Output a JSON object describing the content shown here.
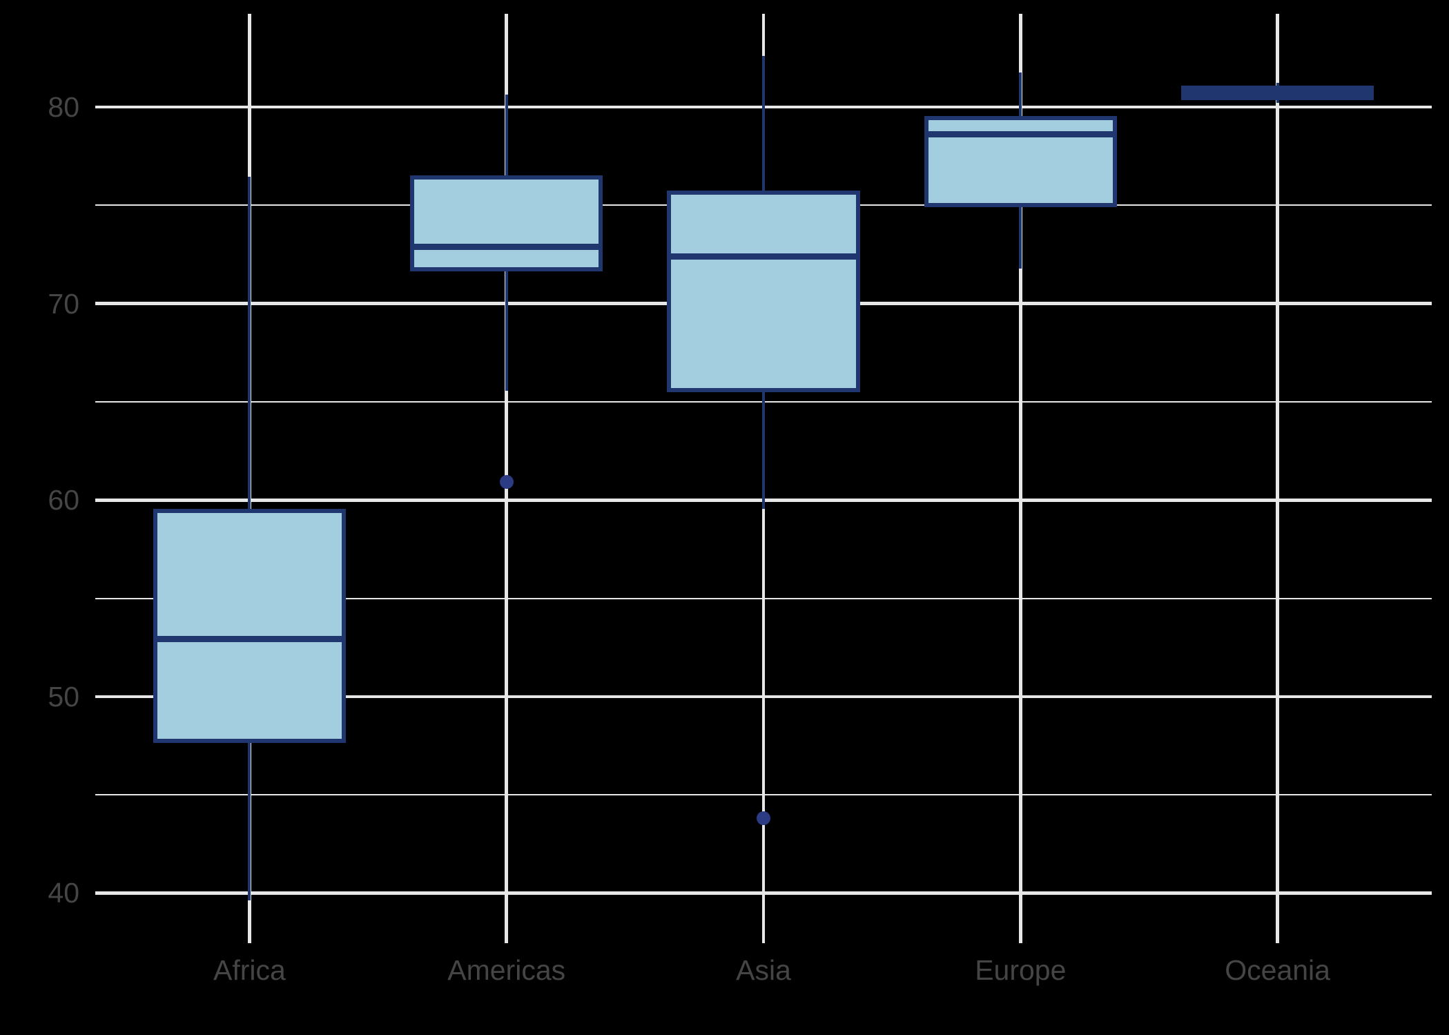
{
  "chart_data": {
    "type": "boxplot",
    "title": "",
    "xlabel": "",
    "ylabel": "",
    "categories": [
      "Africa",
      "Americas",
      "Asia",
      "Europe",
      "Oceania"
    ],
    "y_major_ticks": [
      40,
      50,
      60,
      70,
      80
    ],
    "y_tick_labels": [
      "40",
      "50",
      "60",
      "70",
      "80"
    ],
    "y_minor_ticks": [
      45,
      55,
      65,
      75
    ],
    "ylim": [
      37.45,
      84.75
    ],
    "grid": "on",
    "legend_position": "none",
    "series": [
      {
        "name": "Africa",
        "whisker_low": 39.613,
        "q1": 47.76,
        "median": 52.927,
        "q3": 59.443,
        "whisker_high": 76.442,
        "outliers": []
      },
      {
        "name": "Americas",
        "whisker_low": 65.554,
        "q1": 71.752,
        "median": 72.899,
        "q3": 76.413,
        "whisker_high": 80.653,
        "outliers": [
          60.916
        ]
      },
      {
        "name": "Asia",
        "whisker_low": 59.545,
        "q1": 65.604,
        "median": 72.396,
        "q3": 75.635,
        "whisker_high": 82.603,
        "outliers": [
          43.828
        ]
      },
      {
        "name": "Europe",
        "whisker_low": 71.777,
        "q1": 75.005,
        "median": 78.608,
        "q3": 79.444,
        "whisker_high": 81.757,
        "outliers": []
      },
      {
        "name": "Oceania",
        "whisker_low": 80.204,
        "q1": 80.462,
        "median": 80.72,
        "q3": 80.978,
        "whisker_high": 81.235,
        "outliers": []
      }
    ],
    "colors": {
      "background": "#000000",
      "box_fill": "#A3CEDF",
      "box_border": "#1F366E",
      "median_line": "#1F366E",
      "whisker": "#1F366E",
      "outlier_dot": "#2B3B84",
      "grid_major": "#E7E7E7",
      "grid_minor": "#E7E7E7",
      "axis_text": "#454545"
    }
  }
}
